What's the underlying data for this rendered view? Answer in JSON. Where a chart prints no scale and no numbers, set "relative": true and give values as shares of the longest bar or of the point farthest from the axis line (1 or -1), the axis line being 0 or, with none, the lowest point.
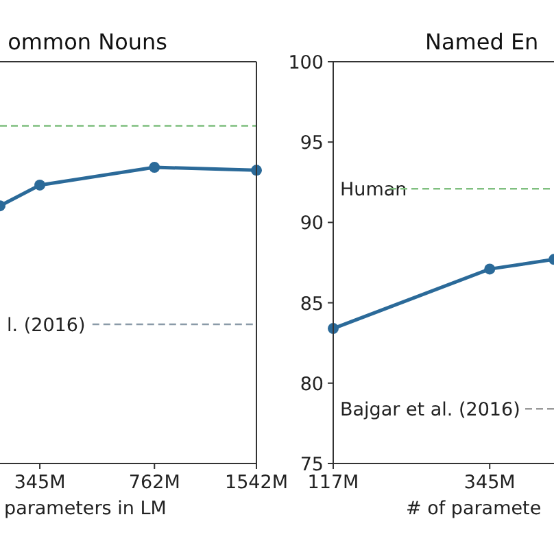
{
  "chart_data": [
    {
      "type": "line",
      "title": "ommon Nouns",
      "xlabel": "parameters in LM",
      "relative": true,
      "log": "x",
      "marker": "circle",
      "line_style": "solid",
      "x": [
        262,
        345,
        762,
        1542
      ],
      "xlim": [
        262,
        1542
      ],
      "xticks": [
        {
          "value": 345,
          "label": "345M"
        },
        {
          "value": 762,
          "label": "762M"
        },
        {
          "value": 1542,
          "label": "1542M"
        }
      ],
      "series": [
        {
          "color": "#2b6a99",
          "values": [
            0.87,
            0.94,
            1,
            0.99
          ]
        }
      ],
      "ref_lines": [
        {
          "axis": "y",
          "value": 1.14,
          "color": "#7fbf7f",
          "line_style": "dashed"
        },
        {
          "axis": "y",
          "value": 0.47,
          "label": "l. (2016)",
          "color": "#8a9aa8",
          "line_style": "dashed"
        }
      ]
    },
    {
      "type": "line",
      "title": "Named En",
      "xlabel": "# of paramete",
      "log": "x",
      "marker": "circle",
      "line_style": "solid",
      "x": [
        117,
        345,
        538
      ],
      "xlim": [
        117,
        538
      ],
      "xticks": [
        {
          "value": 117,
          "label": "117M"
        },
        {
          "value": 345,
          "label": "345M"
        }
      ],
      "ylim": [
        75,
        100
      ],
      "yticks": [
        75,
        80,
        85,
        90,
        95,
        100
      ],
      "series": [
        {
          "color": "#2b6a99",
          "values": [
            83.4,
            87.1,
            87.7
          ]
        }
      ],
      "ref_lines": [
        {
          "axis": "y",
          "value": 92.1,
          "label": "Human",
          "color": "#7fbf7f",
          "line_style": "dashed"
        },
        {
          "axis": "y",
          "value": 78.4,
          "label": "Bajgar et al. (2016)",
          "color": "#999999",
          "line_style": "dashed"
        }
      ]
    }
  ]
}
